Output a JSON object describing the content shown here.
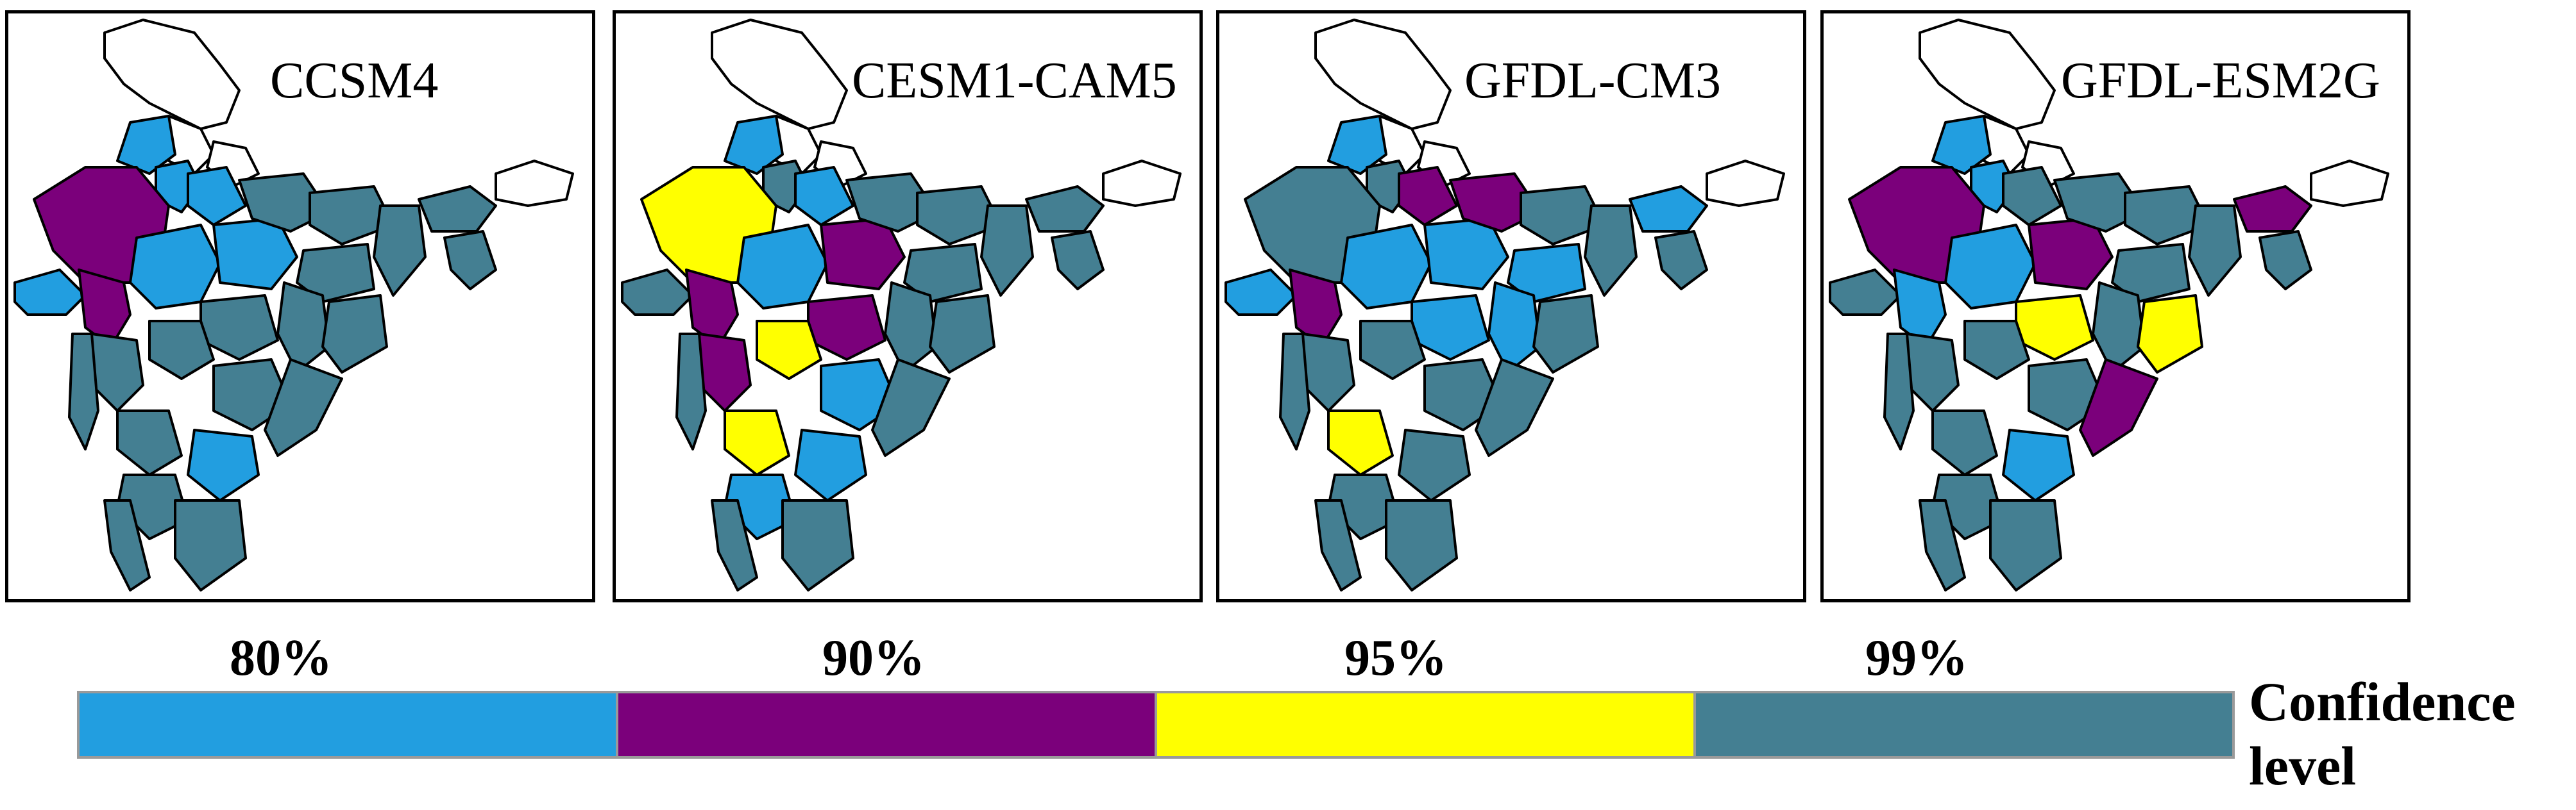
{
  "colors": {
    "c80": "#229ee0",
    "c90": "#7b007b",
    "c95": "#ffff00",
    "c99": "#447f92",
    "ns": "#ffffff"
  },
  "panels": [
    {
      "title": "CCSM4",
      "category_colors": {
        "blue": "c80",
        "purple": "c90",
        "yellow": "c95",
        "teal": "c99"
      },
      "highlights": [
        {
          "region": "rajasthan",
          "level": "c90"
        },
        {
          "region": "gujarat_west",
          "level": "c80"
        },
        {
          "region": "gujarat_east",
          "level": "c90"
        },
        {
          "region": "punjab",
          "level": "c80"
        },
        {
          "region": "haryana",
          "level": "c80"
        },
        {
          "region": "west_mp",
          "level": "c80"
        },
        {
          "region": "east_mp",
          "level": "c80"
        },
        {
          "region": "uttar_pradesh_west",
          "level": "c80"
        },
        {
          "region": "rayalaseema",
          "level": "c80"
        }
      ]
    },
    {
      "title": "CESM1-CAM5",
      "highlights": [
        {
          "region": "rajasthan",
          "level": "c95"
        },
        {
          "region": "gujarat_west",
          "level": "c99"
        },
        {
          "region": "gujarat_east",
          "level": "c90"
        },
        {
          "region": "punjab",
          "level": "c80"
        },
        {
          "region": "haryana",
          "level": "c99"
        },
        {
          "region": "west_mp",
          "level": "c80"
        },
        {
          "region": "east_mp",
          "level": "c90"
        },
        {
          "region": "uttar_pradesh_west",
          "level": "c80"
        },
        {
          "region": "vidarbha",
          "level": "c90"
        },
        {
          "region": "marathwada",
          "level": "c95"
        },
        {
          "region": "telangana",
          "level": "c80"
        },
        {
          "region": "madhya_maha",
          "level": "c90"
        },
        {
          "region": "n_karnataka",
          "level": "c95"
        },
        {
          "region": "rayalaseema",
          "level": "c80"
        },
        {
          "region": "s_karnataka",
          "level": "c80"
        }
      ]
    },
    {
      "title": "GFDL-CM3",
      "highlights": [
        {
          "region": "gujarat_west",
          "level": "c80"
        },
        {
          "region": "gujarat_east",
          "level": "c90"
        },
        {
          "region": "punjab",
          "level": "c80"
        },
        {
          "region": "uttar_pradesh_west",
          "level": "c90"
        },
        {
          "region": "uttar_pradesh_east",
          "level": "c90"
        },
        {
          "region": "west_mp",
          "level": "c80"
        },
        {
          "region": "east_mp",
          "level": "c80"
        },
        {
          "region": "chhattisgarh",
          "level": "c80"
        },
        {
          "region": "vidarbha",
          "level": "c80"
        },
        {
          "region": "jharkhand",
          "level": "c80"
        },
        {
          "region": "assam",
          "level": "c80"
        },
        {
          "region": "n_karnataka",
          "level": "c95"
        }
      ]
    },
    {
      "title": "GFDL-ESM2G",
      "highlights": [
        {
          "region": "rajasthan",
          "level": "c90"
        },
        {
          "region": "gujarat_east",
          "level": "c80"
        },
        {
          "region": "punjab",
          "level": "c80"
        },
        {
          "region": "haryana",
          "level": "c80"
        },
        {
          "region": "west_mp",
          "level": "c80"
        },
        {
          "region": "east_mp",
          "level": "c90"
        },
        {
          "region": "assam",
          "level": "c90"
        },
        {
          "region": "vidarbha",
          "level": "c95"
        },
        {
          "region": "odisha",
          "level": "c95"
        },
        {
          "region": "coastal_ap",
          "level": "c90"
        },
        {
          "region": "rayalaseema",
          "level": "c80"
        }
      ]
    }
  ],
  "legend": {
    "items": [
      {
        "label": "80%",
        "color": "#229ee0"
      },
      {
        "label": "90%",
        "color": "#7b007b"
      },
      {
        "label": "95%",
        "color": "#ffff00"
      },
      {
        "label": "99%",
        "color": "#447f92"
      }
    ],
    "title_line1": "Confidence",
    "title_line2": "level"
  }
}
